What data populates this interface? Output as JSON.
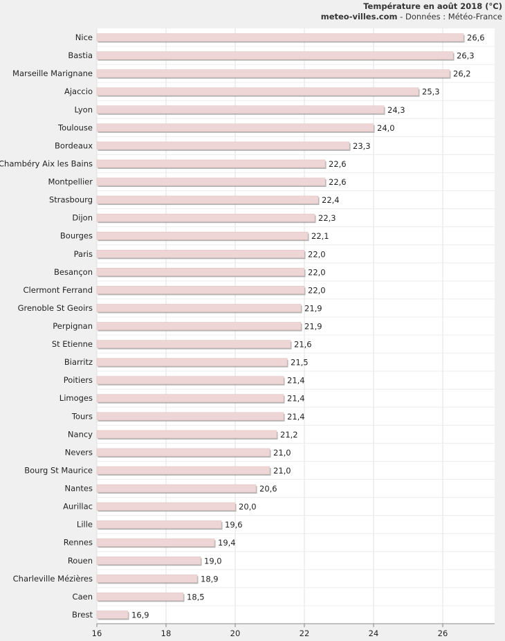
{
  "header": {
    "title": "Température en août 2018 (°C)",
    "source_site": "meteo-villes.com",
    "source_rest": " - Données : Météo-France"
  },
  "chart_data": {
    "type": "bar",
    "orientation": "horizontal",
    "title": "Température en août 2018 (°C)",
    "xlim": [
      16,
      27.5
    ],
    "xticks": [
      "16",
      "18",
      "20",
      "22",
      "24",
      "26"
    ],
    "xtick_values": [
      16,
      18,
      20,
      22,
      24,
      26
    ],
    "grid": true,
    "bar_color": "#efd6d6",
    "categories": [
      "Nice",
      "Bastia",
      "Marseille Marignane",
      "Ajaccio",
      "Lyon",
      "Toulouse",
      "Bordeaux",
      "Chambéry Aix les Bains",
      "Montpellier",
      "Strasbourg",
      "Dijon",
      "Bourges",
      "Paris",
      "Besançon",
      "Clermont Ferrand",
      "Grenoble St Geoirs",
      "Perpignan",
      "St Etienne",
      "Biarritz",
      "Poitiers",
      "Limoges",
      "Tours",
      "Nancy",
      "Nevers",
      "Bourg St Maurice",
      "Nantes",
      "Aurillac",
      "Lille",
      "Rennes",
      "Rouen",
      "Charleville Mézières",
      "Caen",
      "Brest"
    ],
    "values": [
      26.6,
      26.3,
      26.2,
      25.3,
      24.3,
      24.0,
      23.3,
      22.6,
      22.6,
      22.4,
      22.3,
      22.1,
      22.0,
      22.0,
      22.0,
      21.9,
      21.9,
      21.6,
      21.5,
      21.4,
      21.4,
      21.4,
      21.2,
      21.0,
      21.0,
      20.6,
      20.0,
      19.6,
      19.4,
      19.0,
      18.9,
      18.5,
      16.9
    ],
    "value_labels": [
      "26,6",
      "26,3",
      "26,2",
      "25,3",
      "24,3",
      "24,0",
      "23,3",
      "22,6",
      "22,6",
      "22,4",
      "22,3",
      "22,1",
      "22,0",
      "22,0",
      "22,0",
      "21,9",
      "21,9",
      "21,6",
      "21,5",
      "21,4",
      "21,4",
      "21,4",
      "21,2",
      "21,0",
      "21,0",
      "20,6",
      "20,0",
      "19,6",
      "19,4",
      "19,0",
      "18,9",
      "18,5",
      "16,9"
    ]
  }
}
